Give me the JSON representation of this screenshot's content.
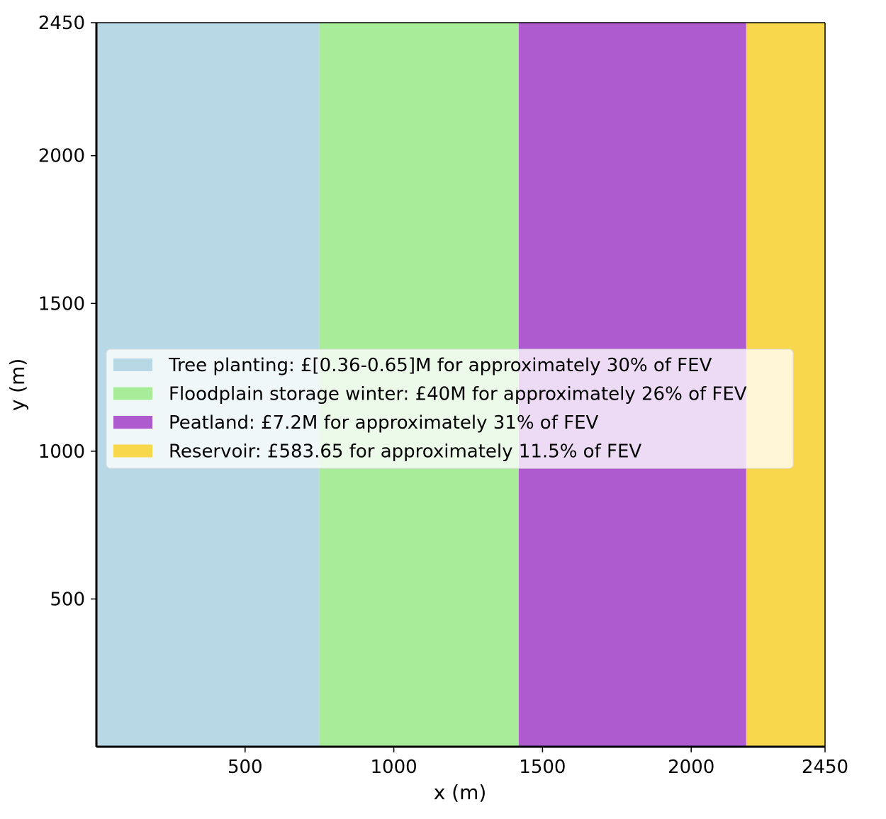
{
  "chart_data": {
    "type": "area",
    "title": "",
    "xlabel": "x (m)",
    "ylabel": "y (m)",
    "xlim": [
      0,
      2450
    ],
    "ylim": [
      0,
      2450
    ],
    "xticks": [
      500,
      1000,
      1500,
      2000,
      2450
    ],
    "yticks": [
      500,
      1000,
      1500,
      2000,
      2450
    ],
    "grid": false,
    "legend_position": "center-left",
    "series": [
      {
        "name": "Tree planting: £[0.36-0.65]M for approximately 30% of FEV",
        "x_start": 0,
        "x_end": 750,
        "y_start": 0,
        "y_end": 2450,
        "color": "#b8d8e5"
      },
      {
        "name": "Floodplain storage winter: £40M for approximately 26% of FEV",
        "x_start": 750,
        "x_end": 1420,
        "y_start": 0,
        "y_end": 2450,
        "color": "#a8ec9a"
      },
      {
        "name": "Peatland: £7.2M for approximately 31% of FEV",
        "x_start": 1420,
        "x_end": 2185,
        "y_start": 0,
        "y_end": 2450,
        "color": "#ad5bcf"
      },
      {
        "name": "Reservoir: £583.65 for approximately 11.5% of FEV",
        "x_start": 2185,
        "x_end": 2450,
        "y_start": 0,
        "y_end": 2450,
        "color": "#f8d74c"
      }
    ]
  }
}
